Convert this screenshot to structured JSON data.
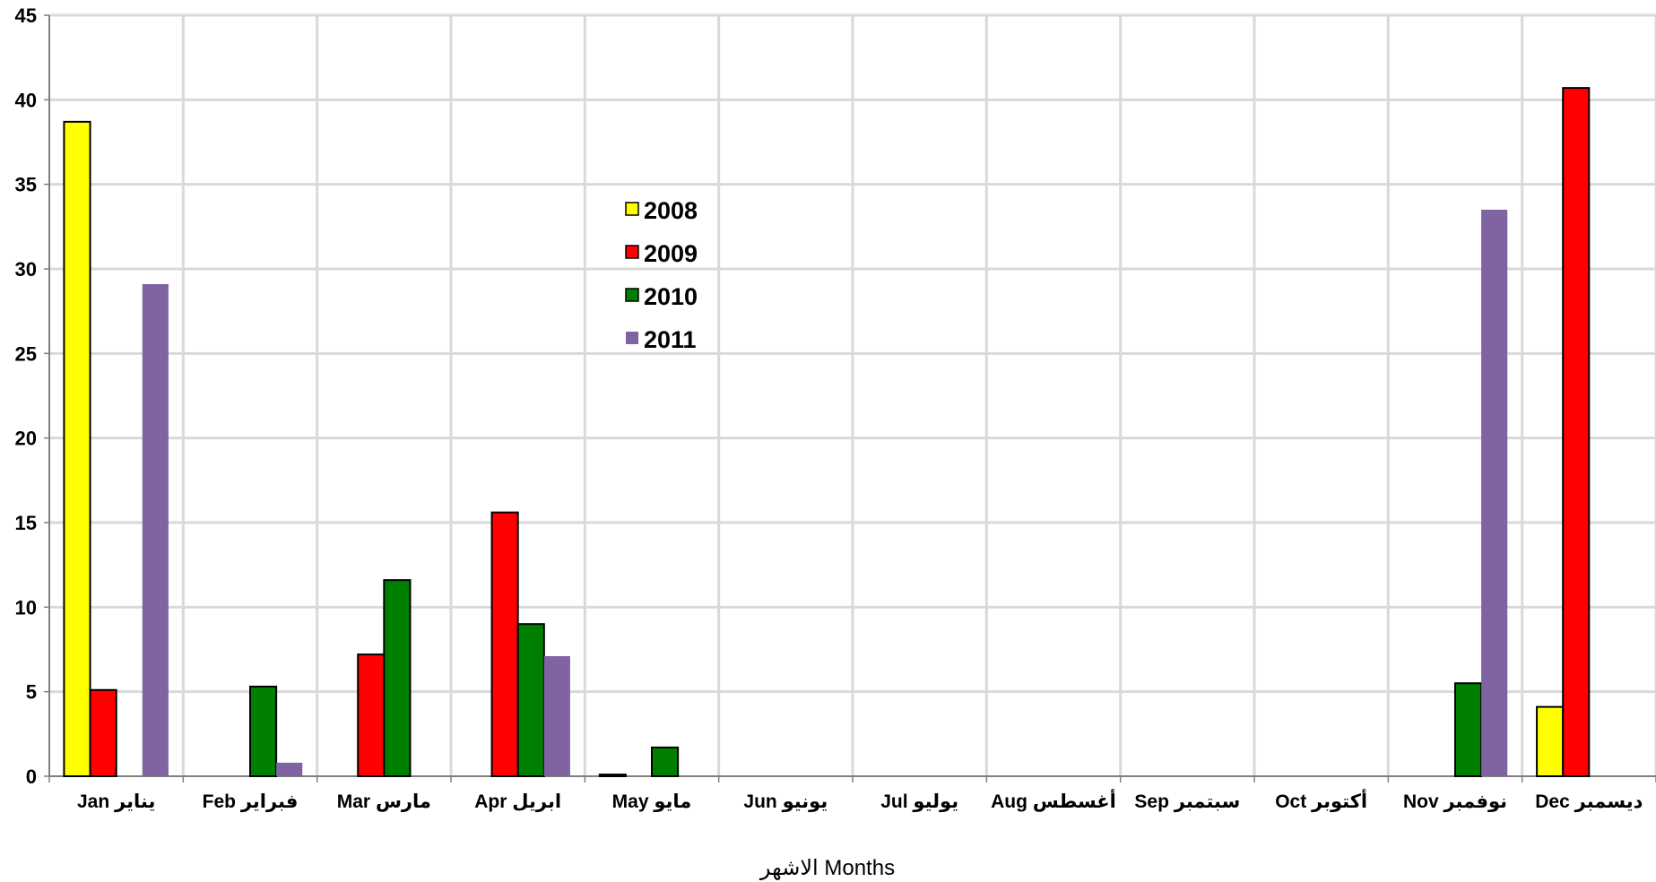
{
  "chart_data": {
    "type": "bar",
    "categories": [
      "Jan يناير",
      "Feb فبراير",
      "Mar مارس",
      "Apr ابريل",
      "May مايو",
      "Jun يونيو",
      "Jul يوليو",
      "Aug أغسطس",
      "Sep سبتمبر",
      "Oct أكتوبر",
      "Nov نوفمبر",
      "Dec ديسمبر"
    ],
    "series": [
      {
        "name": "2008",
        "color": "#ffff00",
        "values": [
          38.7,
          0,
          0,
          0,
          0.1,
          0,
          0,
          0,
          0,
          0,
          0,
          4.1
        ]
      },
      {
        "name": "2009",
        "color": "#ff0000",
        "values": [
          5.1,
          0,
          7.2,
          15.6,
          0,
          0,
          0,
          0,
          0,
          0,
          0,
          40.7
        ]
      },
      {
        "name": "2010",
        "color": "#008000",
        "values": [
          0,
          5.3,
          11.6,
          9.0,
          1.7,
          0,
          0,
          0,
          0,
          0,
          5.5,
          0
        ]
      },
      {
        "name": "2011",
        "color": "#8064a2",
        "values": [
          29.1,
          0.8,
          0,
          7.1,
          0,
          0,
          0,
          0,
          0,
          0,
          33.5,
          0
        ]
      }
    ],
    "xlabel": "الاشهر Months",
    "ylabel": "",
    "ylim": [
      0,
      45
    ],
    "yticks": [
      "0",
      "5",
      "10",
      "15",
      "20",
      "25",
      "30",
      "35",
      "40",
      "45"
    ],
    "grid": true,
    "legend_position": "center-left"
  }
}
